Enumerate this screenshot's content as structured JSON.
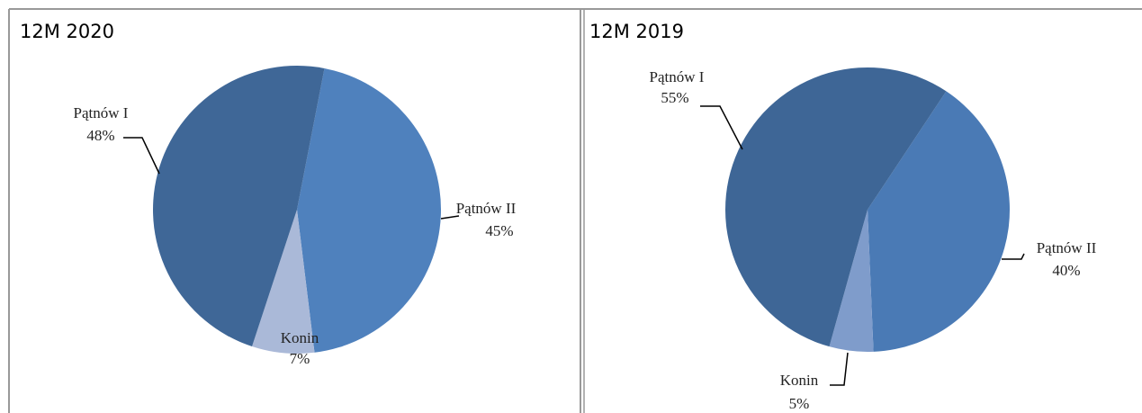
{
  "chart_data": [
    {
      "type": "pie",
      "title": "12M 2020",
      "categories": [
        "Pątnów II",
        "Konin",
        "Pątnów I"
      ],
      "values": [
        45,
        7,
        48
      ],
      "value_labels": [
        "45%",
        "7%",
        "48%"
      ],
      "colors": [
        "#4f81bd",
        "#aab9d8",
        "#3f6797"
      ]
    },
    {
      "type": "pie",
      "title": "12M 2019",
      "categories": [
        "Pątnów II",
        "Konin",
        "Pątnów I"
      ],
      "values": [
        40,
        5,
        55
      ],
      "value_labels": [
        "40%",
        "5%",
        "55%"
      ],
      "colors": [
        "#4a7ab5",
        "#7f9ccb",
        "#3e6696"
      ]
    }
  ]
}
